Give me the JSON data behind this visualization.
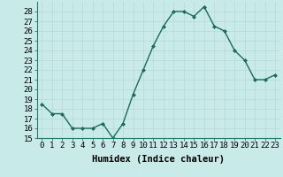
{
  "x": [
    0,
    1,
    2,
    3,
    4,
    5,
    6,
    7,
    8,
    9,
    10,
    11,
    12,
    13,
    14,
    15,
    16,
    17,
    18,
    19,
    20,
    21,
    22,
    23
  ],
  "y": [
    18.5,
    17.5,
    17.5,
    16.0,
    16.0,
    16.0,
    16.5,
    15.0,
    16.5,
    19.5,
    22.0,
    24.5,
    26.5,
    28.0,
    28.0,
    27.5,
    28.5,
    26.5,
    26.0,
    24.0,
    23.0,
    21.0,
    21.0,
    21.5
  ],
  "line_color": "#1a6b5a",
  "marker": "D",
  "marker_size": 2,
  "bg_color": "#c8eae8",
  "grid_color": "#b8d8d4",
  "xlabel": "Humidex (Indice chaleur)",
  "xlim": [
    -0.5,
    23.5
  ],
  "ylim": [
    15,
    29
  ],
  "yticks": [
    15,
    16,
    17,
    18,
    19,
    20,
    21,
    22,
    23,
    24,
    25,
    26,
    27,
    28
  ],
  "xticks": [
    0,
    1,
    2,
    3,
    4,
    5,
    6,
    7,
    8,
    9,
    10,
    11,
    12,
    13,
    14,
    15,
    16,
    17,
    18,
    19,
    20,
    21,
    22,
    23
  ],
  "xtick_labels": [
    "0",
    "1",
    "2",
    "3",
    "4",
    "5",
    "6",
    "7",
    "8",
    "9",
    "10",
    "11",
    "12",
    "13",
    "14",
    "15",
    "16",
    "17",
    "18",
    "19",
    "20",
    "21",
    "22",
    "23"
  ],
  "tick_fontsize": 6.5,
  "xlabel_fontsize": 7.5,
  "line_width": 1.0
}
